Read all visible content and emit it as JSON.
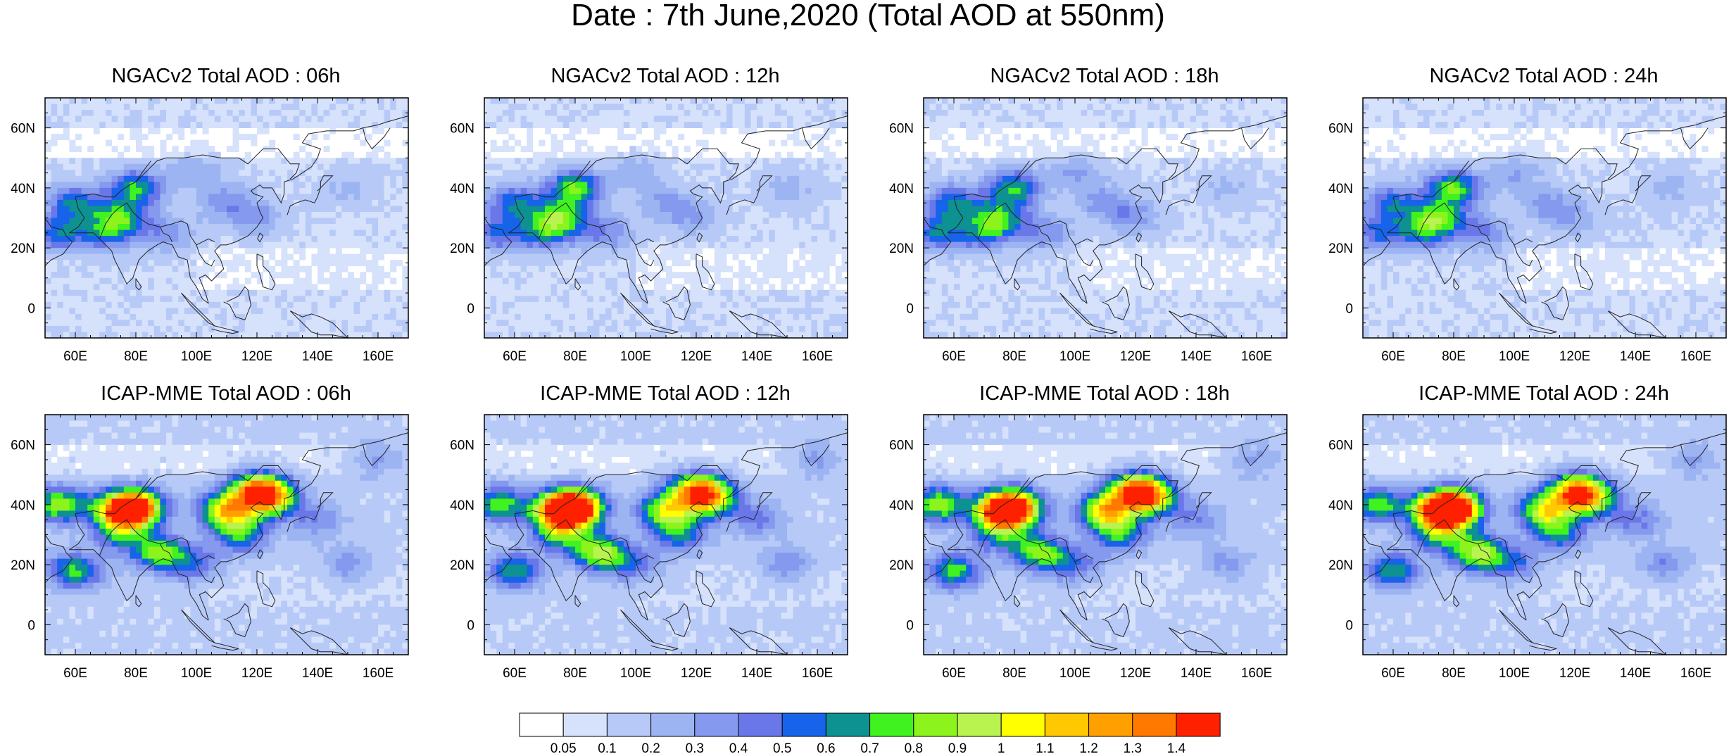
{
  "figure": {
    "title": "Date : 7th June,2020 (Total AOD at 550nm)"
  },
  "map_extent": {
    "lon_range": [
      50,
      170
    ],
    "lat_range": [
      -10,
      70
    ],
    "lon_ticks": [
      "60E",
      "80E",
      "100E",
      "120E",
      "140E",
      "160E"
    ],
    "lat_ticks": [
      "60N",
      "40N",
      "20N",
      "0"
    ]
  },
  "panels": [
    {
      "id": "ngac-06h",
      "title": "NGACv2 Total AOD : 06h",
      "model": "ngac",
      "hour": 6
    },
    {
      "id": "ngac-12h",
      "title": "NGACv2 Total AOD : 12h",
      "model": "ngac",
      "hour": 12
    },
    {
      "id": "ngac-18h",
      "title": "NGACv2 Total AOD : 18h",
      "model": "ngac",
      "hour": 18
    },
    {
      "id": "ngac-24h",
      "title": "NGACv2 Total AOD : 24h",
      "model": "ngac",
      "hour": 24
    },
    {
      "id": "icap-06h",
      "title": "ICAP-MME Total AOD : 06h",
      "model": "icap",
      "hour": 6
    },
    {
      "id": "icap-12h",
      "title": "ICAP-MME Total AOD : 12h",
      "model": "icap",
      "hour": 12
    },
    {
      "id": "icap-18h",
      "title": "ICAP-MME Total AOD : 18h",
      "model": "icap",
      "hour": 18
    },
    {
      "id": "icap-24h",
      "title": "ICAP-MME Total AOD : 24h",
      "model": "icap",
      "hour": 24
    }
  ],
  "colorbar": {
    "labels": [
      "0.05",
      "0.1",
      "0.2",
      "0.3",
      "0.4",
      "0.5",
      "0.6",
      "0.7",
      "0.8",
      "0.9",
      "1",
      "1.1",
      "1.2",
      "1.3",
      "1.4"
    ],
    "levels": [
      0.05,
      0.1,
      0.2,
      0.3,
      0.4,
      0.5,
      0.6,
      0.7,
      0.8,
      0.9,
      1,
      1.1,
      1.2,
      1.3,
      1.4
    ],
    "colors": [
      "#ffffff",
      "#d6e1fb",
      "#b7c9f7",
      "#9db4f2",
      "#8599ee",
      "#6a77e9",
      "#1763e9",
      "#0d9191",
      "#40f21f",
      "#8cf41c",
      "#b8f34f",
      "#ffff00",
      "#ffc800",
      "#ffa000",
      "#ff7800",
      "#ff2000"
    ]
  },
  "colors": {
    "coastline": "#222222",
    "frame": "#000000"
  },
  "aod_features": {
    "ngac": [
      {
        "lon": 60,
        "lat": 35,
        "value": 0.5
      },
      {
        "lon": 55,
        "lat": 25,
        "value": 0.45
      },
      {
        "lon": 75,
        "lat": 30,
        "value": 0.6
      },
      {
        "lon": 80,
        "lat": 40,
        "value": 0.65
      },
      {
        "lon": 70,
        "lat": 25,
        "value": 0.4
      },
      {
        "lon": 90,
        "lat": 25,
        "value": 0.3
      },
      {
        "lon": 110,
        "lat": 35,
        "value": 0.25
      },
      {
        "lon": 120,
        "lat": 30,
        "value": 0.22
      },
      {
        "lon": 100,
        "lat": 45,
        "value": 0.2
      },
      {
        "lon": 150,
        "lat": 40,
        "value": 0.15
      }
    ],
    "icap": [
      {
        "lon": 80,
        "lat": 39,
        "value": 1.35
      },
      {
        "lon": 75,
        "lat": 38,
        "value": 1.0
      },
      {
        "lon": 60,
        "lat": 18,
        "value": 0.6
      },
      {
        "lon": 88,
        "lat": 24,
        "value": 0.75
      },
      {
        "lon": 75,
        "lat": 30,
        "value": 0.5
      },
      {
        "lon": 55,
        "lat": 40,
        "value": 0.7
      },
      {
        "lon": 110,
        "lat": 38,
        "value": 0.9
      },
      {
        "lon": 120,
        "lat": 45,
        "value": 0.95
      },
      {
        "lon": 125,
        "lat": 42,
        "value": 0.8
      },
      {
        "lon": 115,
        "lat": 30,
        "value": 0.5
      },
      {
        "lon": 100,
        "lat": 20,
        "value": 0.35
      },
      {
        "lon": 140,
        "lat": 35,
        "value": 0.3
      },
      {
        "lon": 150,
        "lat": 20,
        "value": 0.25
      },
      {
        "lon": 160,
        "lat": 55,
        "value": 0.25
      }
    ]
  }
}
